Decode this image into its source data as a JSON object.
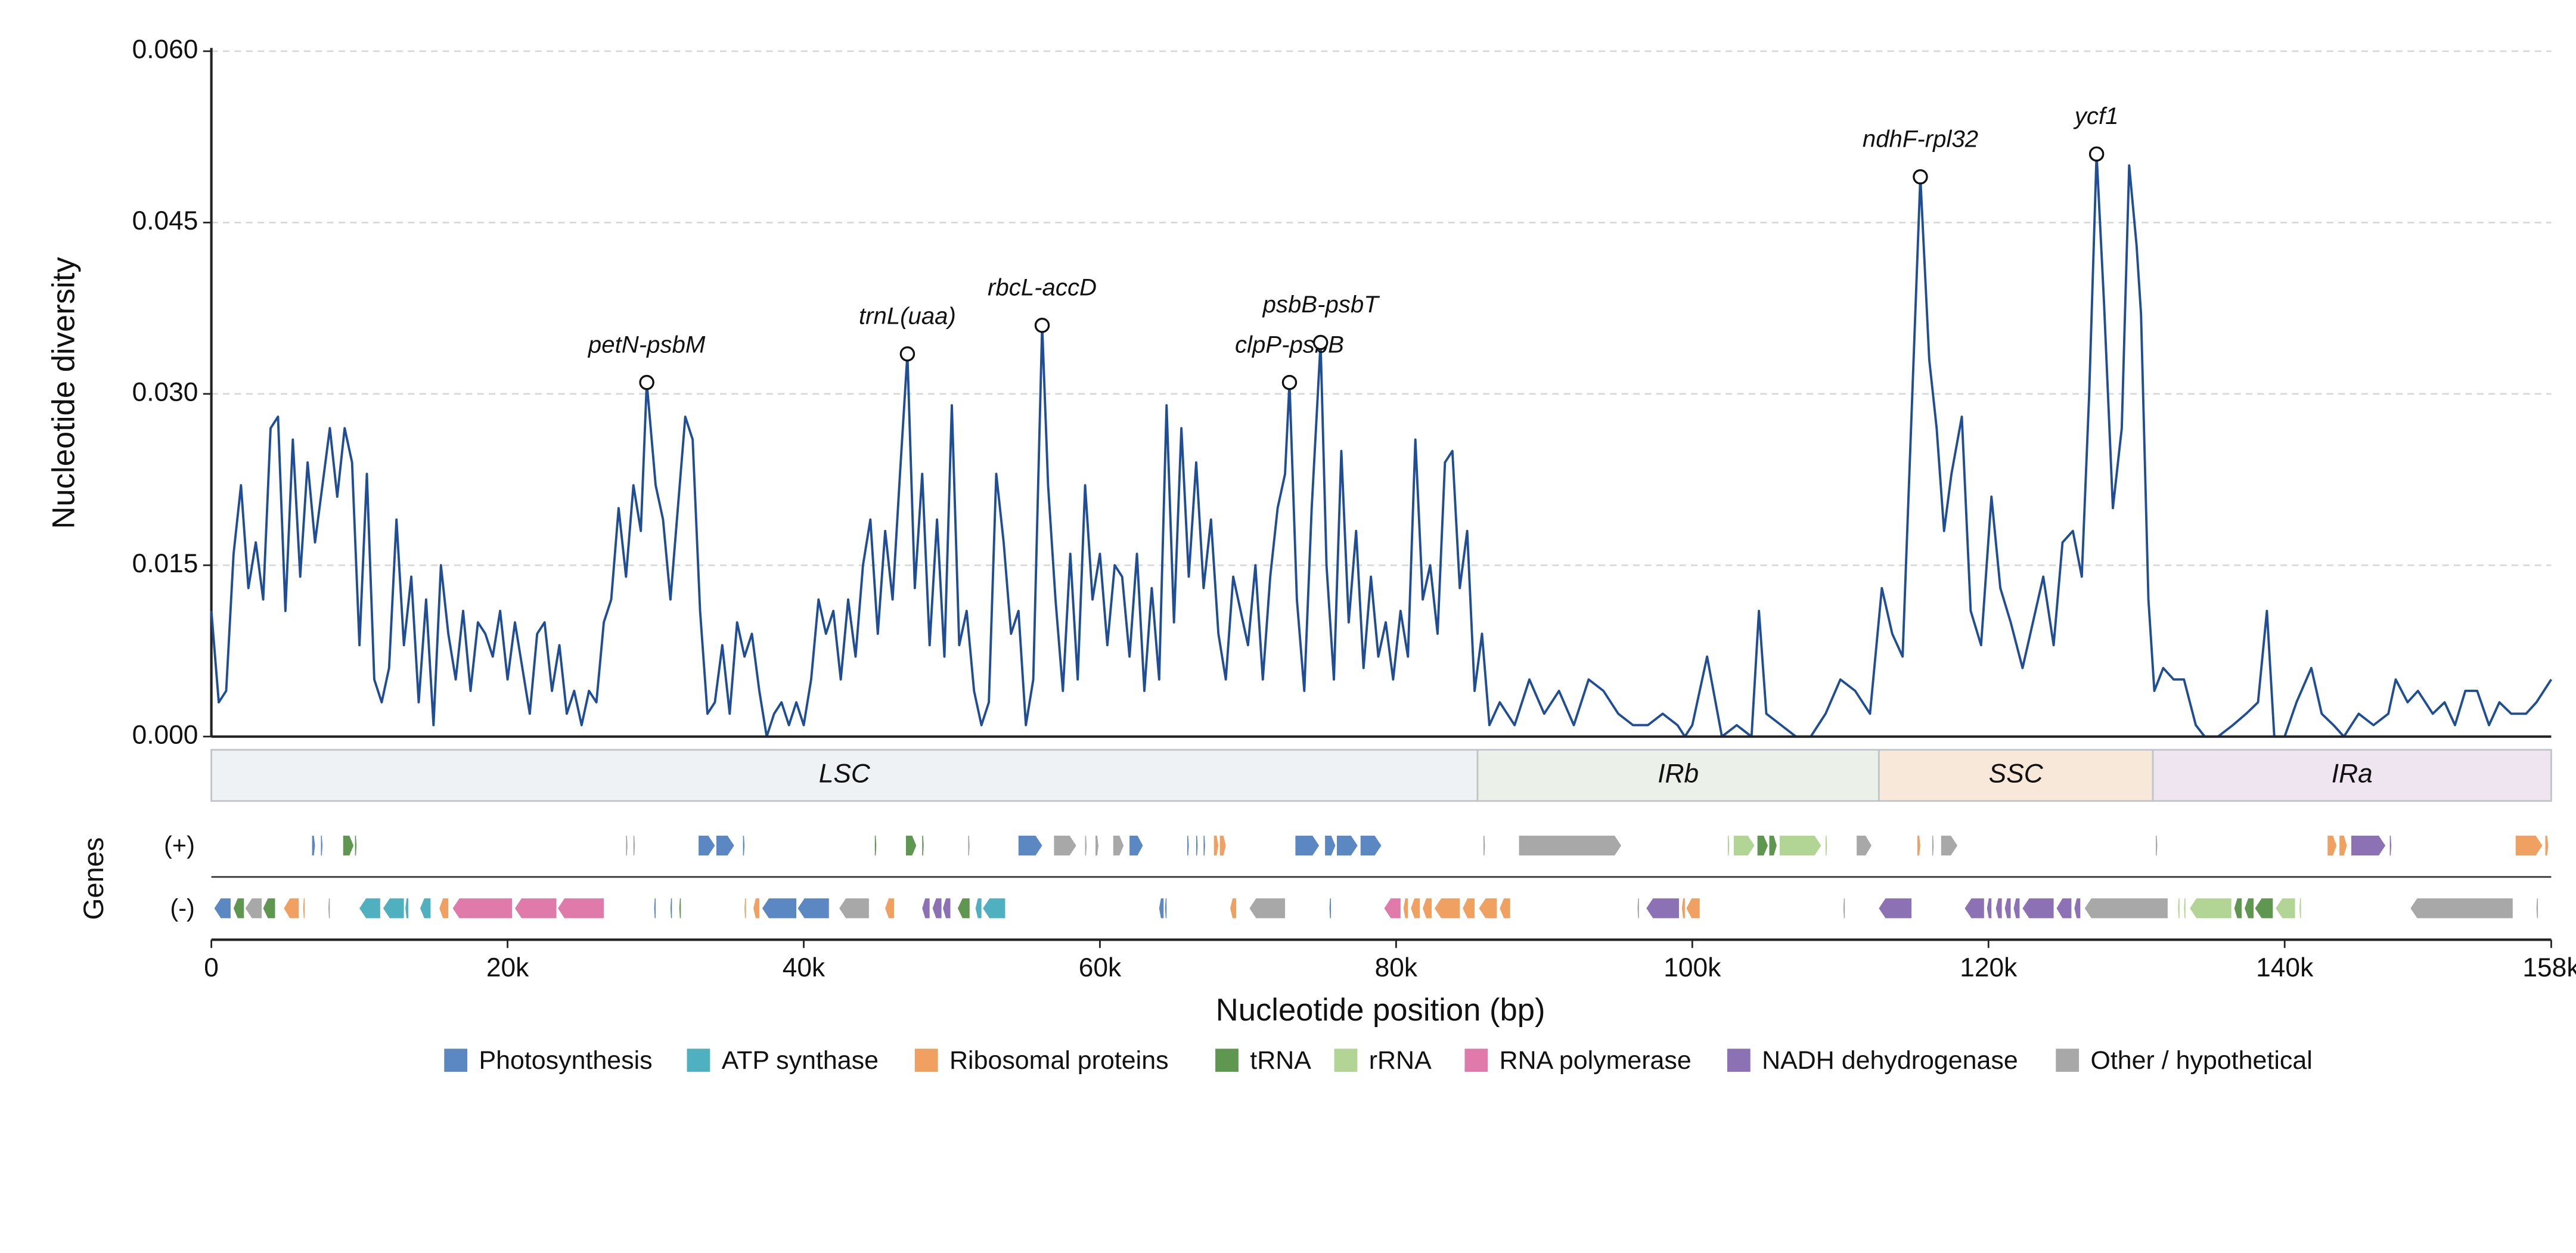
{
  "chart_data": {
    "type": "line",
    "ylabel": "Nucleotide diversity",
    "xlabel": "Nucleotide position (bp)",
    "genes_label": "Genes",
    "plus_label": "(+)",
    "minus_label": "(-)",
    "color": "#1f4e96",
    "grid": true,
    "xlim": [
      0,
      158000
    ],
    "xticks": [
      0,
      {
        "value": 20000,
        "label": "20k"
      },
      {
        "value": 40000,
        "label": "40k"
      },
      {
        "value": 60000,
        "label": "60k"
      },
      {
        "value": 80000,
        "label": "80k"
      },
      {
        "value": 100000,
        "label": "100k"
      },
      {
        "value": 120000,
        "label": "120k"
      },
      {
        "value": 140000,
        "label": "140k"
      },
      {
        "value": 158000,
        "label": "158k"
      }
    ],
    "ylim": [
      0,
      0.06
    ],
    "yticks": [
      {
        "value": 0,
        "label": "0.000"
      },
      {
        "value": 0.015,
        "label": "0.015"
      },
      {
        "value": 0.03,
        "label": "0.030"
      },
      {
        "value": 0.045,
        "label": "0.045"
      },
      {
        "value": 0.06,
        "label": "0.060"
      }
    ],
    "x": [
      0,
      500,
      1000,
      1500,
      2000,
      2500,
      3000,
      3500,
      4000,
      4500,
      5000,
      5500,
      6000,
      6500,
      7000,
      7500,
      8000,
      8500,
      9000,
      9500,
      10000,
      10500,
      11000,
      11500,
      12000,
      12500,
      13000,
      13500,
      14000,
      14500,
      15000,
      15500,
      16000,
      16500,
      17000,
      17500,
      18000,
      18500,
      19000,
      19500,
      20000,
      20500,
      21000,
      21500,
      22000,
      22500,
      23000,
      23500,
      24000,
      24500,
      25000,
      25500,
      26000,
      26500,
      27000,
      27500,
      28000,
      28500,
      29000,
      29400,
      30000,
      30500,
      31000,
      31500,
      32000,
      32500,
      33000,
      33500,
      34000,
      34500,
      35000,
      35500,
      36000,
      36500,
      37000,
      37500,
      38000,
      38500,
      39000,
      39500,
      40000,
      40500,
      41000,
      41500,
      42000,
      42500,
      43000,
      43500,
      44000,
      44500,
      45000,
      45500,
      46000,
      46500,
      47000,
      47500,
      48000,
      48500,
      49000,
      49500,
      50000,
      50500,
      51000,
      51500,
      52000,
      52500,
      53000,
      53500,
      54000,
      54500,
      55000,
      55500,
      56100,
      56500,
      57000,
      57500,
      58000,
      58500,
      59000,
      59500,
      60000,
      60500,
      61000,
      61500,
      62000,
      62500,
      63000,
      63500,
      64000,
      64500,
      65000,
      65500,
      66000,
      66500,
      67000,
      67500,
      68000,
      68500,
      69000,
      69500,
      70000,
      70500,
      71000,
      71500,
      72000,
      72500,
      72800,
      73300,
      73800,
      74300,
      74900,
      75300,
      75800,
      76300,
      76800,
      77300,
      77800,
      78300,
      78800,
      79300,
      79800,
      80300,
      80800,
      81300,
      81800,
      82300,
      82800,
      83300,
      83800,
      84300,
      84800,
      85300,
      85800,
      86300,
      87000,
      88000,
      89000,
      90000,
      91000,
      92000,
      93000,
      94000,
      95000,
      96000,
      97000,
      98000,
      99000,
      99500,
      100000,
      101000,
      102000,
      103000,
      104000,
      104500,
      105000,
      106000,
      107000,
      108000,
      109000,
      110000,
      111000,
      112000,
      112800,
      113500,
      114200,
      115400,
      116000,
      116500,
      117000,
      117500,
      118200,
      118800,
      119500,
      120200,
      120800,
      121500,
      122300,
      123000,
      123700,
      124400,
      125000,
      125700,
      126300,
      126800,
      127300,
      127800,
      128400,
      129000,
      129500,
      130000,
      130300,
      130800,
      131200,
      131800,
      132500,
      133200,
      134000,
      134600,
      135500,
      136500,
      137400,
      138200,
      138800,
      139300,
      140000,
      140800,
      141800,
      142500,
      143300,
      144000,
      145000,
      146000,
      147000,
      147500,
      148300,
      149000,
      150000,
      150800,
      151500,
      152200,
      153000,
      153800,
      154500,
      155300,
      156300,
      157000,
      158000
    ],
    "values": [
      0.011,
      0.003,
      0.004,
      0.016,
      0.022,
      0.013,
      0.017,
      0.012,
      0.027,
      0.028,
      0.011,
      0.026,
      0.014,
      0.024,
      0.017,
      0.022,
      0.027,
      0.021,
      0.027,
      0.024,
      0.008,
      0.023,
      0.005,
      0.003,
      0.006,
      0.019,
      0.008,
      0.014,
      0.003,
      0.012,
      0.001,
      0.015,
      0.009,
      0.005,
      0.011,
      0.004,
      0.01,
      0.009,
      0.007,
      0.011,
      0.005,
      0.01,
      0.006,
      0.002,
      0.009,
      0.01,
      0.004,
      0.008,
      0.002,
      0.004,
      0.001,
      0.004,
      0.003,
      0.01,
      0.012,
      0.02,
      0.014,
      0.022,
      0.018,
      0.031,
      0.022,
      0.019,
      0.012,
      0.02,
      0.028,
      0.026,
      0.011,
      0.002,
      0.003,
      0.008,
      0.002,
      0.01,
      0.007,
      0.009,
      0.004,
      0.0,
      0.002,
      0.003,
      0.001,
      0.003,
      0.001,
      0.005,
      0.012,
      0.009,
      0.011,
      0.005,
      0.012,
      0.007,
      0.015,
      0.019,
      0.009,
      0.018,
      0.012,
      0.023,
      0.0335,
      0.013,
      0.023,
      0.008,
      0.019,
      0.007,
      0.029,
      0.008,
      0.011,
      0.004,
      0.001,
      0.003,
      0.023,
      0.017,
      0.009,
      0.011,
      0.001,
      0.005,
      0.036,
      0.022,
      0.012,
      0.004,
      0.016,
      0.005,
      0.022,
      0.012,
      0.016,
      0.008,
      0.015,
      0.014,
      0.007,
      0.016,
      0.004,
      0.013,
      0.005,
      0.029,
      0.01,
      0.027,
      0.014,
      0.024,
      0.013,
      0.019,
      0.009,
      0.005,
      0.014,
      0.011,
      0.008,
      0.015,
      0.005,
      0.014,
      0.02,
      0.023,
      0.031,
      0.012,
      0.004,
      0.02,
      0.0345,
      0.015,
      0.005,
      0.025,
      0.01,
      0.018,
      0.006,
      0.014,
      0.007,
      0.01,
      0.005,
      0.011,
      0.007,
      0.026,
      0.012,
      0.015,
      0.009,
      0.024,
      0.025,
      0.013,
      0.018,
      0.004,
      0.009,
      0.001,
      0.003,
      0.001,
      0.005,
      0.002,
      0.004,
      0.001,
      0.005,
      0.004,
      0.002,
      0.001,
      0.001,
      0.002,
      0.001,
      0.0,
      0.001,
      0.007,
      0.0,
      0.001,
      0.0,
      0.011,
      0.002,
      0.001,
      0.0,
      0.0,
      0.002,
      0.005,
      0.004,
      0.002,
      0.013,
      0.009,
      0.007,
      0.049,
      0.033,
      0.027,
      0.018,
      0.023,
      0.028,
      0.011,
      0.008,
      0.021,
      0.013,
      0.01,
      0.006,
      0.01,
      0.014,
      0.008,
      0.017,
      0.018,
      0.014,
      0.03,
      0.051,
      0.038,
      0.02,
      0.027,
      0.05,
      0.043,
      0.037,
      0.012,
      0.004,
      0.006,
      0.005,
      0.005,
      0.001,
      0.0,
      0.0,
      0.001,
      0.002,
      0.003,
      0.011,
      0.0,
      0.0,
      0.003,
      0.006,
      0.002,
      0.001,
      0.0,
      0.002,
      0.001,
      0.002,
      0.005,
      0.003,
      0.004,
      0.002,
      0.003,
      0.001,
      0.004,
      0.004,
      0.001,
      0.003,
      0.002,
      0.002,
      0.003,
      0.005
    ],
    "annotations": [
      {
        "label": "petN-psbM",
        "x": 29400,
        "y": 0.031
      },
      {
        "label": "trnL(uaa)",
        "x": 47000,
        "y": 0.0335
      },
      {
        "label": "rbcL-accD",
        "x": 56100,
        "y": 0.036
      },
      {
        "label": "clpP-psbB",
        "x": 72800,
        "y": 0.031
      },
      {
        "label": "psbB-psbT",
        "x": 74900,
        "y": 0.0345
      },
      {
        "label": "ndhF-rpl32",
        "x": 115400,
        "y": 0.049
      },
      {
        "label": "ycf1",
        "x": 127300,
        "y": 0.051
      }
    ],
    "regions": [
      {
        "name": "LSC",
        "start": 0,
        "end": 85500,
        "color": "#eef2f5"
      },
      {
        "name": "IRb",
        "start": 85500,
        "end": 112600,
        "color": "#ebf1e8"
      },
      {
        "name": "SSC",
        "start": 112600,
        "end": 131100,
        "color": "#f8e8da"
      },
      {
        "name": "IRa",
        "start": 131100,
        "end": 158000,
        "color": "#efe5f1"
      }
    ],
    "legend": [
      {
        "name": "Photosynthesis",
        "color": "#5b88c2"
      },
      {
        "name": "ATP synthase",
        "color": "#4fb0c0"
      },
      {
        "name": "Ribosomal proteins",
        "color": "#f0a060"
      },
      {
        "name": "tRNA",
        "color": "#5f9650"
      },
      {
        "name": "rRNA",
        "color": "#b2d494"
      },
      {
        "name": "RNA polymerase",
        "color": "#e07aab"
      },
      {
        "name": "NADH dehydrogenase",
        "color": "#8c72b4"
      },
      {
        "name": "Other / hypothetical",
        "color": "#a8a8a8"
      }
    ],
    "genes": {
      "plus": [
        [
          6800,
          7000,
          "Photosynthesis"
        ],
        [
          7400,
          7500,
          "Photosynthesis"
        ],
        [
          8900,
          9600,
          "tRNA"
        ],
        [
          9700,
          9800,
          "tRNA"
        ],
        [
          28000,
          28100,
          "Other / hypothetical"
        ],
        [
          28500,
          28600,
          "Other / hypothetical"
        ],
        [
          32900,
          34000,
          "Photosynthesis"
        ],
        [
          34100,
          35300,
          "Photosynthesis"
        ],
        [
          35900,
          36000,
          "Photosynthesis"
        ],
        [
          44800,
          44900,
          "tRNA"
        ],
        [
          46900,
          47600,
          "tRNA"
        ],
        [
          48000,
          48100,
          "tRNA"
        ],
        [
          51100,
          51200,
          "Other / hypothetical"
        ],
        [
          54500,
          56100,
          "Photosynthesis"
        ],
        [
          56900,
          58400,
          "Other / hypothetical"
        ],
        [
          59000,
          59100,
          "Other / hypothetical"
        ],
        [
          59700,
          59900,
          "Other / hypothetical"
        ],
        [
          60900,
          61600,
          "Other / hypothetical"
        ],
        [
          62000,
          62900,
          "Photosynthesis"
        ],
        [
          65900,
          66000,
          "Photosynthesis"
        ],
        [
          66500,
          66600,
          "Photosynthesis"
        ],
        [
          67000,
          67100,
          "Photosynthesis"
        ],
        [
          67700,
          68000,
          "Ribosomal proteins"
        ],
        [
          68100,
          68500,
          "Ribosomal proteins"
        ],
        [
          73200,
          74800,
          "Photosynthesis"
        ],
        [
          75200,
          75900,
          "Photosynthesis"
        ],
        [
          76000,
          77400,
          "Photosynthesis"
        ],
        [
          77600,
          79000,
          "Photosynthesis"
        ],
        [
          85900,
          86000,
          "Other / hypothetical"
        ],
        [
          88300,
          95200,
          "Other / hypothetical"
        ],
        [
          102400,
          102500,
          "rRNA"
        ],
        [
          102800,
          104200,
          "rRNA"
        ],
        [
          104400,
          105100,
          "tRNA"
        ],
        [
          105200,
          105700,
          "tRNA"
        ],
        [
          105900,
          108700,
          "rRNA"
        ],
        [
          109000,
          109100,
          "rRNA"
        ],
        [
          111100,
          112100,
          "Other / hypothetical"
        ],
        [
          115200,
          115400,
          "Ribosomal proteins"
        ],
        [
          116200,
          116300,
          "Other / hypothetical"
        ],
        [
          116800,
          117900,
          "Other / hypothetical"
        ],
        [
          131300,
          131400,
          "Other / hypothetical"
        ],
        [
          142900,
          143500,
          "Ribosomal proteins"
        ],
        [
          143700,
          144200,
          "Ribosomal proteins"
        ],
        [
          144500,
          146800,
          "NADH dehydrogenase"
        ],
        [
          147100,
          147200,
          "NADH dehydrogenase"
        ],
        [
          155600,
          157400,
          "Ribosomal proteins"
        ],
        [
          157600,
          157800,
          "Ribosomal proteins"
        ]
      ],
      "minus": [
        [
          200,
          1300,
          "Photosynthesis"
        ],
        [
          1500,
          2200,
          "tRNA"
        ],
        [
          2300,
          3400,
          "Other / hypothetical"
        ],
        [
          3500,
          4300,
          "tRNA"
        ],
        [
          4900,
          5900,
          "Ribosomal proteins"
        ],
        [
          6200,
          6300,
          "Ribosomal proteins"
        ],
        [
          7900,
          8000,
          "Other / hypothetical"
        ],
        [
          10000,
          11400,
          "ATP synthase"
        ],
        [
          11600,
          13000,
          "ATP synthase"
        ],
        [
          13100,
          13300,
          "ATP synthase"
        ],
        [
          14100,
          14800,
          "ATP synthase"
        ],
        [
          15400,
          16000,
          "Ribosomal proteins"
        ],
        [
          16300,
          20300,
          "RNA polymerase"
        ],
        [
          20500,
          23300,
          "RNA polymerase"
        ],
        [
          23400,
          26500,
          "RNA polymerase"
        ],
        [
          29900,
          30000,
          "Photosynthesis"
        ],
        [
          31000,
          31100,
          "Photosynthesis"
        ],
        [
          31600,
          31700,
          "tRNA"
        ],
        [
          36000,
          36100,
          "Ribosomal proteins"
        ],
        [
          36600,
          37000,
          "Ribosomal proteins"
        ],
        [
          37200,
          39500,
          "Photosynthesis"
        ],
        [
          39600,
          41700,
          "Photosynthesis"
        ],
        [
          42400,
          44400,
          "Other / hypothetical"
        ],
        [
          45500,
          46100,
          "Ribosomal proteins"
        ],
        [
          48000,
          48500,
          "NADH dehydrogenase"
        ],
        [
          48700,
          49300,
          "NADH dehydrogenase"
        ],
        [
          49400,
          49900,
          "NADH dehydrogenase"
        ],
        [
          50400,
          51200,
          "tRNA"
        ],
        [
          51600,
          52000,
          "ATP synthase"
        ],
        [
          52100,
          53600,
          "ATP synthase"
        ],
        [
          64000,
          64300,
          "Photosynthesis"
        ],
        [
          64400,
          64500,
          "Photosynthesis"
        ],
        [
          68800,
          69200,
          "Ribosomal proteins"
        ],
        [
          70100,
          72500,
          "Other / hypothetical"
        ],
        [
          75500,
          75600,
          "Photosynthesis"
        ],
        [
          79200,
          80300,
          "RNA polymerase"
        ],
        [
          80500,
          80800,
          "Ribosomal proteins"
        ],
        [
          81000,
          81600,
          "Ribosomal proteins"
        ],
        [
          81800,
          82400,
          "Ribosomal proteins"
        ],
        [
          82600,
          84300,
          "Ribosomal proteins"
        ],
        [
          84500,
          85300,
          "Ribosomal proteins"
        ],
        [
          85600,
          86800,
          "Ribosomal proteins"
        ],
        [
          87000,
          87700,
          "Ribosomal proteins"
        ],
        [
          96300,
          96400,
          "Other / hypothetical"
        ],
        [
          96900,
          99100,
          "NADH dehydrogenase"
        ],
        [
          99300,
          99500,
          "Ribosomal proteins"
        ],
        [
          99600,
          100500,
          "Ribosomal proteins"
        ],
        [
          110200,
          110300,
          "Other / hypothetical"
        ],
        [
          112600,
          114800,
          "NADH dehydrogenase"
        ],
        [
          118400,
          119700,
          "NADH dehydrogenase"
        ],
        [
          119900,
          120200,
          "NADH dehydrogenase"
        ],
        [
          120500,
          120900,
          "NADH dehydrogenase"
        ],
        [
          121100,
          121500,
          "NADH dehydrogenase"
        ],
        [
          121700,
          122100,
          "NADH dehydrogenase"
        ],
        [
          122300,
          124400,
          "NADH dehydrogenase"
        ],
        [
          124600,
          125600,
          "NADH dehydrogenase"
        ],
        [
          125800,
          126200,
          "NADH dehydrogenase"
        ],
        [
          126500,
          132100,
          "Other / hypothetical"
        ],
        [
          132800,
          132900,
          "rRNA"
        ],
        [
          133200,
          133300,
          "rRNA"
        ],
        [
          133600,
          136400,
          "rRNA"
        ],
        [
          136600,
          137100,
          "tRNA"
        ],
        [
          137300,
          137900,
          "tRNA"
        ],
        [
          138000,
          139200,
          "tRNA"
        ],
        [
          139400,
          140700,
          "rRNA"
        ],
        [
          141000,
          141100,
          "rRNA"
        ],
        [
          148500,
          155400,
          "Other / hypothetical"
        ],
        [
          157000,
          157100,
          "Other / hypothetical"
        ]
      ]
    }
  }
}
